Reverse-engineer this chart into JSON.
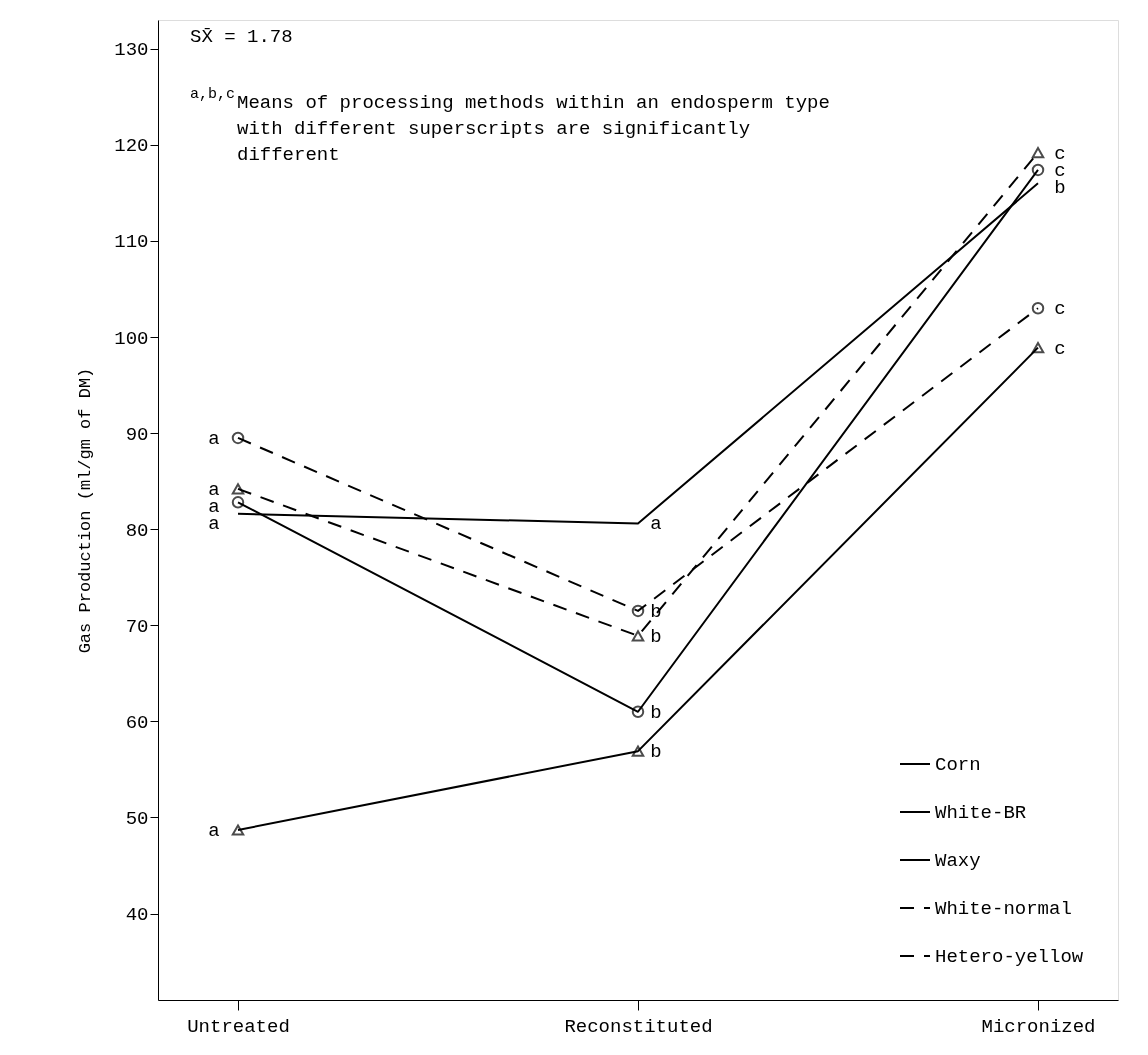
{
  "chart_data": {
    "type": "line",
    "ylabel": "Gas Production (ml/gm of DM)",
    "categories": [
      "Untreated",
      "Reconstituted",
      "Micronized"
    ],
    "ylim": [
      31,
      133
    ],
    "yticks": [
      40,
      50,
      60,
      70,
      80,
      90,
      100,
      110,
      120,
      130
    ],
    "grid": false,
    "legend": "bottom right",
    "series": [
      {
        "name": "Corn",
        "color": "#000000",
        "marker": "circle",
        "line_style": "solid",
        "values": [
          82.8,
          61.0,
          117.4
        ]
      },
      {
        "name": "White-BR",
        "color": "#000000",
        "marker": "triangle",
        "line_style": "solid",
        "values": [
          48.7,
          56.9,
          98.9
        ]
      },
      {
        "name": "Waxy",
        "color": "#000000",
        "marker": "none",
        "line_style": "solid",
        "values": [
          81.6,
          80.6,
          116.0
        ]
      },
      {
        "name": "White-normal",
        "color": "#000000",
        "marker": "circle",
        "line_style": "dashed",
        "values": [
          89.5,
          71.5,
          103.0
        ]
      },
      {
        "name": "Hetero-yellow",
        "color": "#000000",
        "marker": "triangle",
        "line_style": "dashed",
        "values": [
          84.2,
          68.9,
          119.2
        ]
      }
    ],
    "annotations": [
      "SX̄ = 1.78",
      "$^{a,b,c}$Means of processing methods within an endosperm type with different superscripts are significantly different",
      {
        "text": "a",
        "x": "Untreated",
        "y": 89.5
      },
      {
        "text": "a",
        "x": "Untreated",
        "y": 84.2
      },
      {
        "text": "a",
        "x": "Untreated",
        "y": 82.8
      },
      {
        "text": "a",
        "x": "Untreated",
        "y": 81.6
      },
      {
        "text": "a",
        "x": "Untreated",
        "y": 48.7
      },
      {
        "text": "a",
        "x": "Reconstituted",
        "y": 80.6
      },
      {
        "text": "b",
        "x": "Reconstituted",
        "y": 71.5
      },
      {
        "text": "b",
        "x": "Reconstituted",
        "y": 68.9
      },
      {
        "text": "b",
        "x": "Reconstituted",
        "y": 61.0
      },
      {
        "text": "b",
        "x": "Reconstituted",
        "y": 56.9
      },
      {
        "text": "c",
        "x": "Micronized",
        "y": 119.2
      },
      {
        "text": "c",
        "x": "Micronized",
        "y": 117.4
      },
      {
        "text": "b",
        "x": "Micronized",
        "y": 116.0
      },
      {
        "text": "c",
        "x": "Micronized",
        "y": 103.0
      },
      {
        "text": "c",
        "x": "Micronized",
        "y": 98.9
      }
    ]
  }
}
